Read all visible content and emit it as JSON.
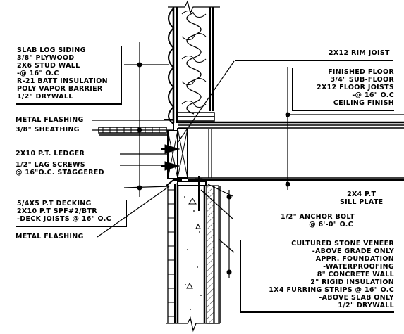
{
  "labels": {
    "wall_assembly": [
      "SLAB LOG SIDING",
      "3/8\" PLYWOOD",
      "2X6 STUD WALL",
      "-@ 16\" O.C",
      "R-21 BATT INSULATION",
      "POLY VAPOR BARRIER",
      "1/2\" DRYWALL"
    ],
    "metal_flashing_top": "METAL FLASHING",
    "sheathing": "3/8\" SHEATHING",
    "ledger": "2X10 P.T. LEDGER",
    "lag_screws": [
      "1/2\"   LAG SCREWS",
      "@ 16\"O.C. STAGGERED"
    ],
    "decking": [
      "5/4X5 P.T DECKING",
      "2X10 P.T SPF#2/BTR",
      "-DECK JOISTS @ 16\" O.C"
    ],
    "metal_flashing_bottom": "METAL FLASHING",
    "rim_joist": "2X12 RIM JOIST",
    "floor_assembly": [
      "FINISHED FLOOR",
      "3/4\" SUB-FLOOR",
      "2X12 FLOOR JOISTS",
      "-@ 16\" O.C",
      "CEILING FINISH"
    ],
    "sill_plate": [
      "2X4 P.T",
      "SILL PLATE"
    ],
    "anchor_bolt": [
      "1/2\"   ANCHOR BOLT",
      "@ 6'-0\" O.C"
    ],
    "foundation_assembly": [
      "CULTURED STONE VENEER",
      "-ABOVE GRADE ONLY",
      "APPR. FOUNDATION",
      "-WATERPROOFING",
      "8\" CONCRETE WALL",
      "2\" RIGID INSULATION",
      "1X4 FURRING STRIPS @ 16\" O.C",
      "-ABOVE SLAB ONLY",
      "1/2\" DRYWALL"
    ]
  }
}
